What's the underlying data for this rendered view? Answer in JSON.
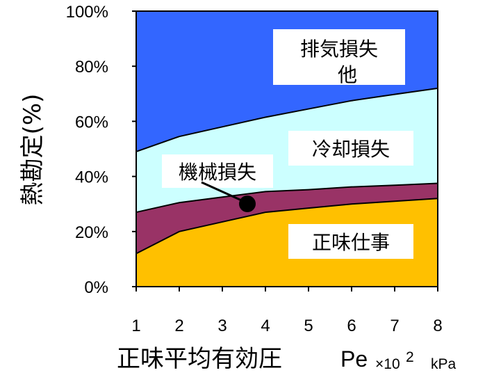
{
  "chart_data": {
    "type": "area",
    "x": [
      1,
      2,
      3,
      4,
      5,
      6,
      7,
      8
    ],
    "xlim": [
      1,
      8
    ],
    "ylim": [
      0,
      100
    ],
    "x_ticks": [
      "1",
      "2",
      "3",
      "4",
      "5",
      "6",
      "7",
      "8"
    ],
    "y_ticks": [
      "0%",
      "20%",
      "40%",
      "60%",
      "80%",
      "100%"
    ],
    "ylabel": "熱勘定(%)",
    "xlabel": "正味平均有効圧",
    "xlabel_unit_symbol": "Pe",
    "xlabel_unit_multiplier": "×10",
    "xlabel_unit_exponent": "2",
    "xlabel_unit": "kPa",
    "grid": false,
    "legend": "none",
    "series": [
      {
        "name": "正味仕事",
        "color": "#FFC000",
        "upper": [
          12,
          20,
          23.5,
          27,
          28.5,
          30,
          31,
          32
        ]
      },
      {
        "name": "機械損失",
        "color": "#993366",
        "upper": [
          27,
          30.5,
          32.5,
          34.5,
          35.2,
          36.2,
          36.8,
          37.5
        ]
      },
      {
        "name": "冷却損失",
        "color": "#CCFFFF",
        "upper": [
          49,
          54.5,
          58,
          61.5,
          64.5,
          67.5,
          69.8,
          72
        ]
      },
      {
        "name": "排気損失他",
        "color": "#3366FF",
        "upper": [
          100,
          100,
          100,
          100,
          100,
          100,
          100,
          100
        ]
      }
    ],
    "annotations": {
      "exhaust_line1": "排気損失",
      "exhaust_line2": "他",
      "cooling": "冷却損失",
      "mechanical": "機械損失",
      "net_work": "正味仕事"
    }
  }
}
